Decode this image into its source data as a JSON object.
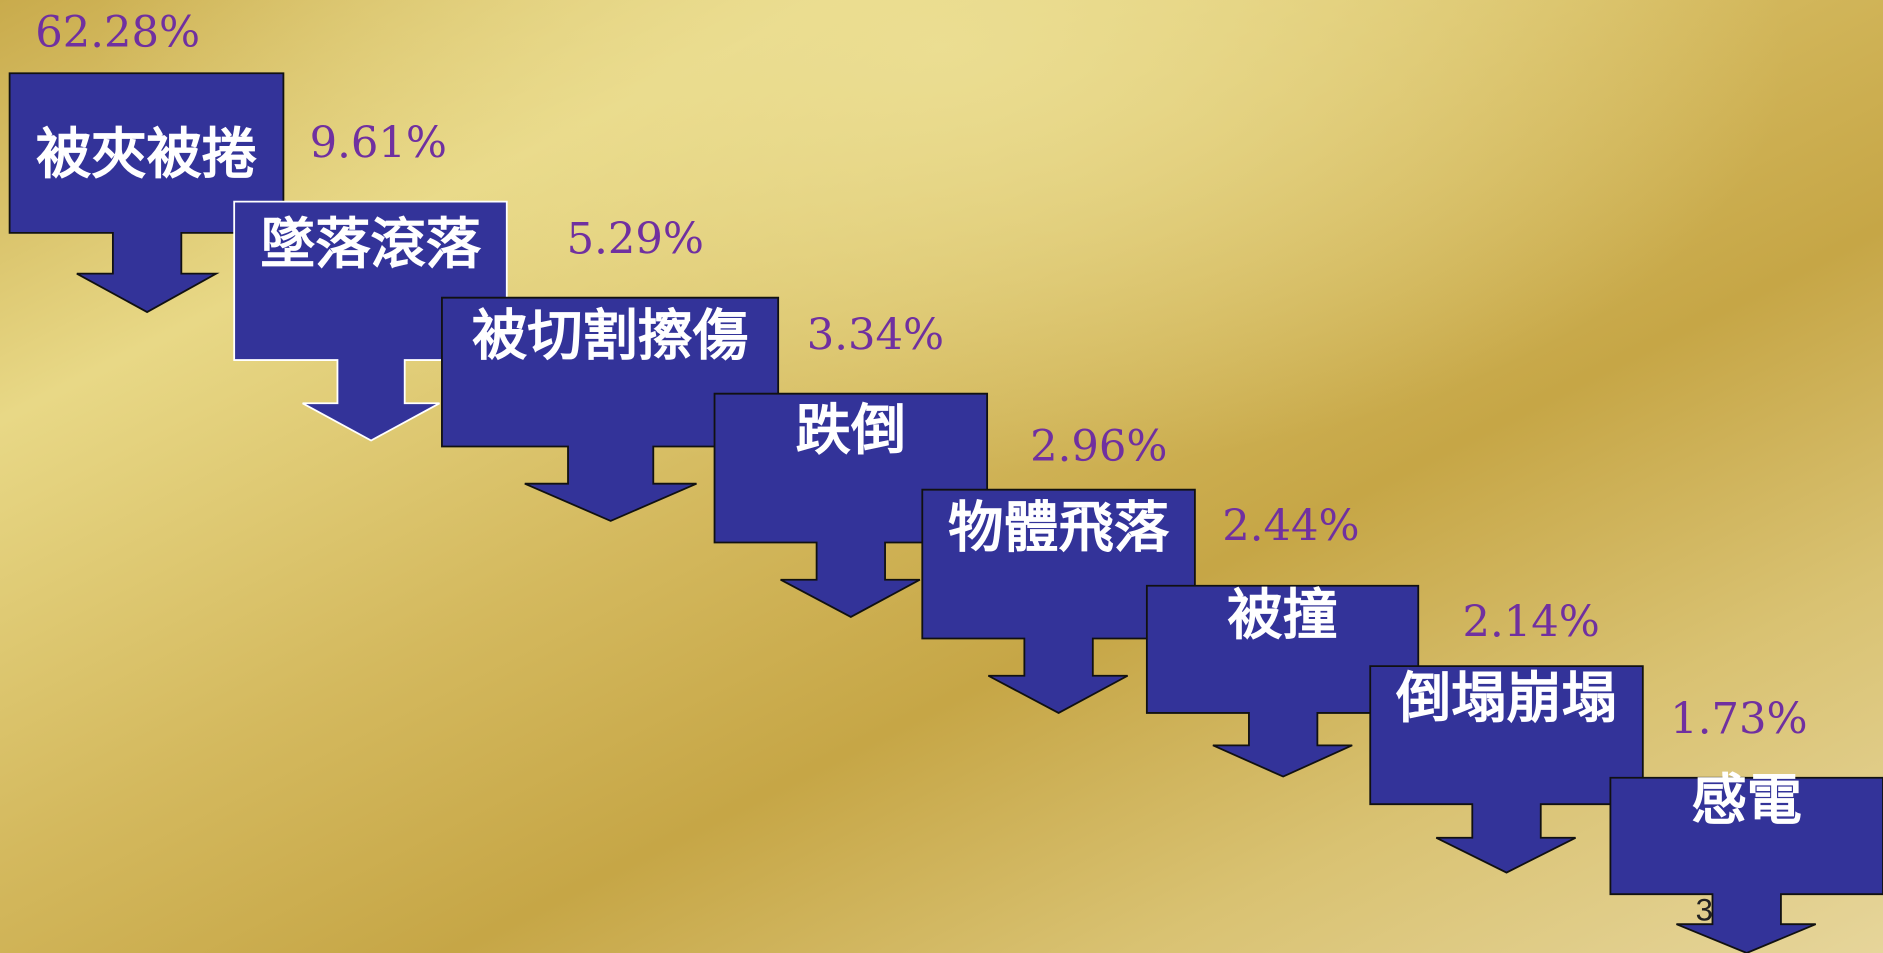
{
  "items": [
    {
      "label": "被夾被捲",
      "percent": "62.28%"
    },
    {
      "label": "墜落滾落",
      "percent": "9.61%"
    },
    {
      "label": "被切割擦傷",
      "percent": "5.29%"
    },
    {
      "label": "跌倒",
      "percent": "3.34%"
    },
    {
      "label": "物體飛落",
      "percent": "2.96%"
    },
    {
      "label": "被撞",
      "percent": "2.44%"
    },
    {
      "label": "倒塌崩塌",
      "percent": "2.14%"
    },
    {
      "label": "感電",
      "percent": "1.73%"
    }
  ],
  "page_number": "3"
}
